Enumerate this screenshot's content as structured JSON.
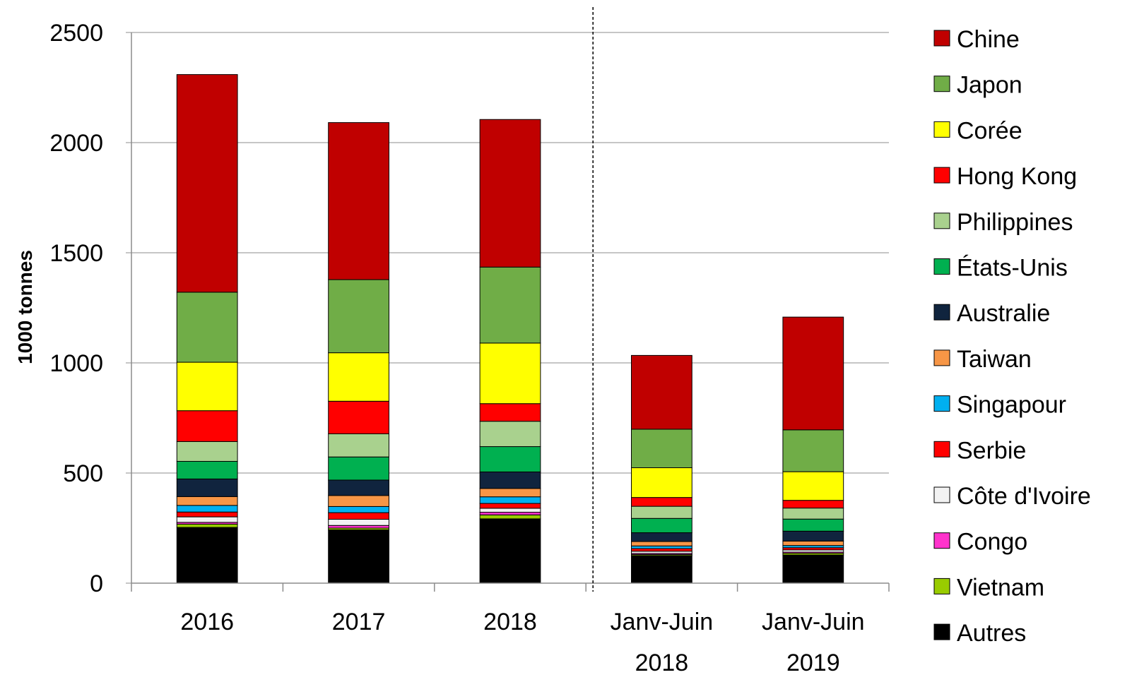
{
  "chart_data": {
    "type": "bar",
    "stacked": true,
    "ylabel": "1000 tonnes",
    "ylim": [
      0,
      2500
    ],
    "yticks": [
      0,
      500,
      1000,
      1500,
      2000,
      2500
    ],
    "grid": true,
    "legend_position": "right",
    "categories": [
      [
        "2016"
      ],
      [
        "2017"
      ],
      [
        "2018"
      ],
      [
        "Janv-Juin",
        "2018"
      ],
      [
        "Janv-Juin",
        "2019"
      ]
    ],
    "divider_after_category": 2,
    "series": [
      {
        "name": "Autres",
        "color": "#000000",
        "values": [
          253,
          242,
          292,
          125,
          128
        ]
      },
      {
        "name": "Vietnam",
        "color": "#99cc00",
        "values": [
          15,
          8,
          18,
          5,
          8
        ]
      },
      {
        "name": "Congo",
        "color": "#ff33cc",
        "values": [
          8,
          12,
          12,
          5,
          5
        ]
      },
      {
        "name": "Côte d'Ivoire",
        "color": "#f2f2f2",
        "values": [
          25,
          28,
          18,
          10,
          10
        ]
      },
      {
        "name": "Serbie",
        "color": "#ff0000",
        "values": [
          22,
          30,
          22,
          12,
          10
        ]
      },
      {
        "name": "Singapour",
        "color": "#00b0f0",
        "values": [
          30,
          28,
          30,
          12,
          10
        ]
      },
      {
        "name": "Taiwan",
        "color": "#f79646",
        "values": [
          40,
          50,
          38,
          20,
          20
        ]
      },
      {
        "name": "Australie",
        "color": "#10243e",
        "values": [
          80,
          70,
          75,
          40,
          45
        ]
      },
      {
        "name": "États-Unis",
        "color": "#00b050",
        "values": [
          80,
          105,
          115,
          65,
          55
        ]
      },
      {
        "name": "Philippines",
        "color": "#a9d18e",
        "values": [
          90,
          105,
          115,
          55,
          50
        ]
      },
      {
        "name": "Hong Kong",
        "color": "#ff0000",
        "values": [
          140,
          148,
          80,
          40,
          35
        ]
      },
      {
        "name": "Corée",
        "color": "#ffff00",
        "values": [
          220,
          220,
          275,
          135,
          130
        ]
      },
      {
        "name": "Japon",
        "color": "#70ad47",
        "values": [
          318,
          332,
          345,
          175,
          190
        ]
      },
      {
        "name": "Chine",
        "color": "#c00000",
        "values": [
          988,
          713,
          670,
          335,
          512
        ]
      }
    ]
  }
}
